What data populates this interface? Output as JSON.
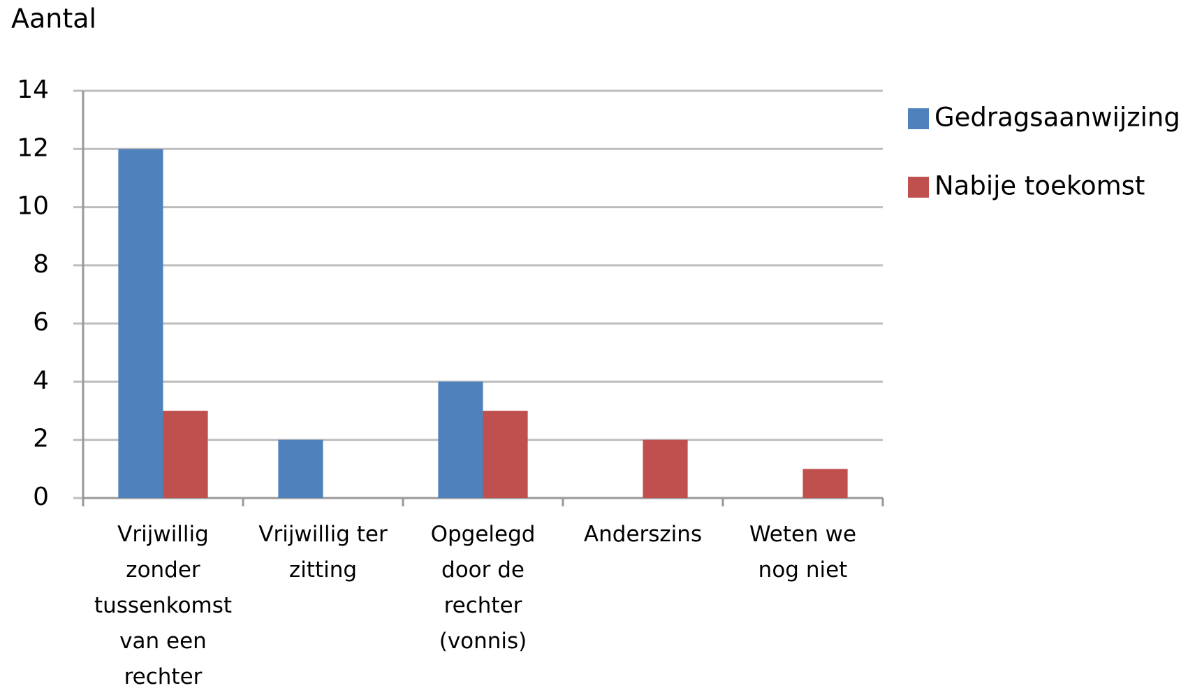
{
  "chart_data": {
    "type": "bar",
    "y_label": "Aantal",
    "categories": [
      "Vrijwillig zonder tussenkomst van een rechter",
      "Vrijwillig ter zitting",
      "Opgelegd door de rechter (vonnis)",
      "Anderszins",
      "Weten we nog niet"
    ],
    "series": [
      {
        "name": "Gedragsaanwijzing",
        "color": "#4f81bd",
        "values": [
          12,
          2,
          4,
          0,
          0
        ]
      },
      {
        "name": "Nabije toekomst",
        "color": "#c0504d",
        "values": [
          3,
          0,
          3,
          2,
          1
        ]
      }
    ],
    "ylim": [
      0,
      14
    ],
    "yticks": [
      0,
      2,
      4,
      6,
      8,
      10,
      12,
      14
    ],
    "grid": true,
    "legend": "right"
  }
}
